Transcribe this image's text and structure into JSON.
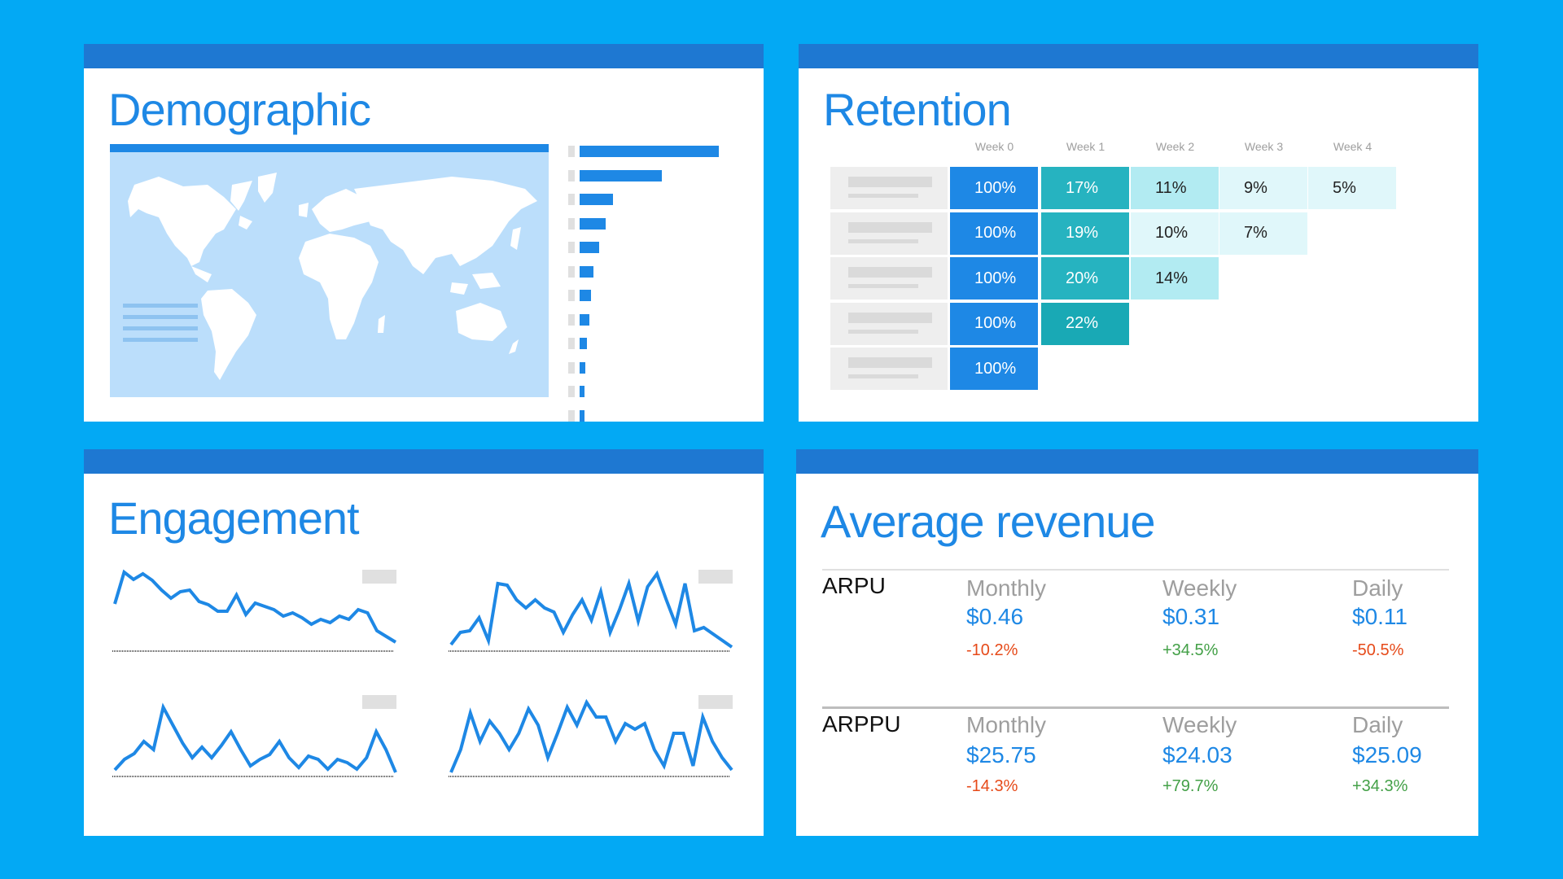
{
  "demographic": {
    "title": "Demographic",
    "bar_values": [
      100,
      59,
      24,
      19,
      14,
      10,
      8,
      7,
      5,
      4,
      3,
      2
    ]
  },
  "retention": {
    "title": "Retention",
    "weeks": [
      "Week 0",
      "Week 1",
      "Week 2",
      "Week 3",
      "Week 4"
    ],
    "rows": [
      [
        "100%",
        "17%",
        "11%",
        "9%",
        "5%"
      ],
      [
        "100%",
        "19%",
        "10%",
        "7%"
      ],
      [
        "100%",
        "20%",
        "14%"
      ],
      [
        "100%",
        "22%"
      ],
      [
        "100%"
      ]
    ],
    "colors": {
      "week0": "#1E88E5",
      "teal_dark": "#26B3C0",
      "teal_deep": "#19A9B5",
      "light": "#B2EBF2",
      "lighter": "#E0F7FA"
    }
  },
  "engagement": {
    "title": "Engagement",
    "series": [
      [
        55,
        94,
        85,
        92,
        84,
        72,
        62,
        70,
        72,
        58,
        54,
        46,
        46,
        66,
        42,
        56,
        52,
        48,
        40,
        44,
        38,
        30,
        36,
        32,
        40,
        36,
        48,
        44,
        22,
        15,
        8
      ],
      [
        5,
        20,
        22,
        38,
        10,
        80,
        78,
        60,
        50,
        60,
        50,
        45,
        20,
        42,
        60,
        35,
        70,
        20,
        48,
        80,
        34,
        76,
        92,
        60,
        30,
        80,
        22,
        26,
        18,
        10,
        2
      ],
      [
        5,
        18,
        25,
        40,
        30,
        82,
        60,
        38,
        20,
        33,
        20,
        35,
        52,
        30,
        10,
        18,
        24,
        40,
        20,
        8,
        22,
        18,
        6,
        18,
        14,
        6,
        20,
        52,
        30,
        2
      ],
      [
        2,
        30,
        75,
        40,
        65,
        50,
        30,
        50,
        80,
        60,
        20,
        50,
        82,
        60,
        88,
        70,
        70,
        40,
        62,
        55,
        62,
        30,
        10,
        50,
        50,
        10,
        70,
        40,
        20,
        5
      ]
    ],
    "line_color": "#1E88E5"
  },
  "revenue": {
    "title": "Average revenue",
    "metrics": [
      {
        "name": "ARPU",
        "cols": [
          {
            "label": "Monthly",
            "value": "$0.46",
            "change": "-10.2%",
            "dir": "neg"
          },
          {
            "label": "Weekly",
            "value": "$0.31",
            "change": "+34.5%",
            "dir": "pos"
          },
          {
            "label": "Daily",
            "value": "$0.11",
            "change": "-50.5%",
            "dir": "neg"
          }
        ]
      },
      {
        "name": "ARPPU",
        "cols": [
          {
            "label": "Monthly",
            "value": "$25.75",
            "change": "-14.3%",
            "dir": "neg"
          },
          {
            "label": "Weekly",
            "value": "$24.03",
            "change": "+79.7%",
            "dir": "pos"
          },
          {
            "label": "Daily",
            "value": "$25.09",
            "change": "+34.3%",
            "dir": "pos"
          }
        ]
      }
    ]
  }
}
